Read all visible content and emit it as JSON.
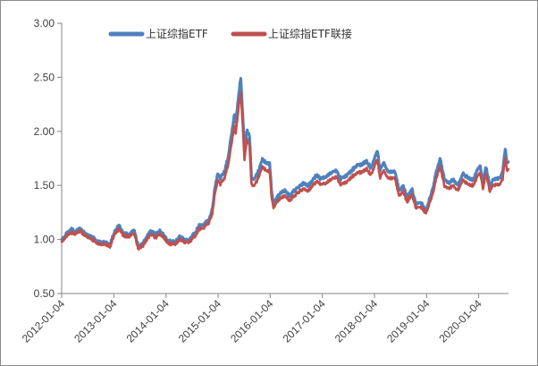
{
  "chart_data": {
    "type": "line",
    "title": "",
    "xlabel": "",
    "ylabel": "",
    "x_ticks": [
      "2012-01-04",
      "2013-01-04",
      "2014-01-04",
      "2015-01-04",
      "2016-01-04",
      "2017-01-04",
      "2018-01-04",
      "2019-01-04",
      "2020-01-04"
    ],
    "x_range": [
      "2012-01-04",
      "2020-07-31"
    ],
    "ylim": [
      0.5,
      3.0
    ],
    "y_ticks": [
      "0.50",
      "1.00",
      "1.50",
      "2.00",
      "2.50",
      "3.00"
    ],
    "grid": false,
    "legend_position": "top-center",
    "series": [
      {
        "name": "上证综指ETF",
        "color": "#4f81bd",
        "points": [
          [
            "2012-01-04",
            1.0
          ],
          [
            "2012-02-15",
            1.06
          ],
          [
            "2012-03-10",
            1.1
          ],
          [
            "2012-04-10",
            1.07
          ],
          [
            "2012-05-10",
            1.1
          ],
          [
            "2012-06-20",
            1.05
          ],
          [
            "2012-08-01",
            1.02
          ],
          [
            "2012-09-20",
            0.98
          ],
          [
            "2012-11-15",
            0.97
          ],
          [
            "2012-12-04",
            0.94
          ],
          [
            "2012-12-31",
            1.04
          ],
          [
            "2013-01-20",
            1.1
          ],
          [
            "2013-02-10",
            1.13
          ],
          [
            "2013-03-10",
            1.06
          ],
          [
            "2013-04-20",
            1.04
          ],
          [
            "2013-05-25",
            1.09
          ],
          [
            "2013-06-25",
            0.93
          ],
          [
            "2013-07-25",
            0.96
          ],
          [
            "2013-09-15",
            1.07
          ],
          [
            "2013-10-25",
            1.05
          ],
          [
            "2013-11-25",
            1.08
          ],
          [
            "2013-12-25",
            1.03
          ],
          [
            "2014-01-20",
            0.98
          ],
          [
            "2014-03-10",
            0.98
          ],
          [
            "2014-04-10",
            1.03
          ],
          [
            "2014-05-20",
            0.99
          ],
          [
            "2014-06-20",
            1.0
          ],
          [
            "2014-07-25",
            1.06
          ],
          [
            "2014-08-25",
            1.13
          ],
          [
            "2014-09-25",
            1.14
          ],
          [
            "2014-10-30",
            1.18
          ],
          [
            "2014-11-25",
            1.28
          ],
          [
            "2014-12-10",
            1.45
          ],
          [
            "2014-12-31",
            1.6
          ],
          [
            "2015-01-20",
            1.57
          ],
          [
            "2015-02-15",
            1.62
          ],
          [
            "2015-03-15",
            1.76
          ],
          [
            "2015-04-10",
            1.99
          ],
          [
            "2015-04-28",
            2.16
          ],
          [
            "2015-05-08",
            2.09
          ],
          [
            "2015-05-28",
            2.33
          ],
          [
            "2015-06-08",
            2.45
          ],
          [
            "2015-06-12",
            2.5
          ],
          [
            "2015-06-26",
            2.14
          ],
          [
            "2015-07-08",
            1.82
          ],
          [
            "2015-07-24",
            2.01
          ],
          [
            "2015-08-12",
            1.97
          ],
          [
            "2015-08-26",
            1.58
          ],
          [
            "2015-09-15",
            1.55
          ],
          [
            "2015-10-15",
            1.64
          ],
          [
            "2015-11-10",
            1.74
          ],
          [
            "2015-12-10",
            1.71
          ],
          [
            "2015-12-31",
            1.7
          ],
          [
            "2016-01-15",
            1.43
          ],
          [
            "2016-01-28",
            1.33
          ],
          [
            "2016-02-20",
            1.38
          ],
          [
            "2016-03-20",
            1.44
          ],
          [
            "2016-04-20",
            1.45
          ],
          [
            "2016-05-20",
            1.4
          ],
          [
            "2016-06-20",
            1.45
          ],
          [
            "2016-07-25",
            1.49
          ],
          [
            "2016-08-25",
            1.52
          ],
          [
            "2016-09-25",
            1.5
          ],
          [
            "2016-10-25",
            1.54
          ],
          [
            "2016-11-25",
            1.6
          ],
          [
            "2016-12-20",
            1.56
          ],
          [
            "2017-01-25",
            1.58
          ],
          [
            "2017-03-10",
            1.62
          ],
          [
            "2017-04-10",
            1.64
          ],
          [
            "2017-05-10",
            1.56
          ],
          [
            "2017-06-20",
            1.59
          ],
          [
            "2017-07-25",
            1.63
          ],
          [
            "2017-08-25",
            1.68
          ],
          [
            "2017-09-25",
            1.69
          ],
          [
            "2017-11-10",
            1.72
          ],
          [
            "2017-12-10",
            1.66
          ],
          [
            "2018-01-25",
            1.82
          ],
          [
            "2018-02-10",
            1.64
          ],
          [
            "2018-03-10",
            1.71
          ],
          [
            "2018-04-10",
            1.63
          ],
          [
            "2018-05-25",
            1.63
          ],
          [
            "2018-06-25",
            1.46
          ],
          [
            "2018-07-25",
            1.49
          ],
          [
            "2018-08-20",
            1.39
          ],
          [
            "2018-09-25",
            1.46
          ],
          [
            "2018-10-20",
            1.33
          ],
          [
            "2018-11-20",
            1.35
          ],
          [
            "2018-12-25",
            1.28
          ],
          [
            "2019-01-04",
            1.28
          ],
          [
            "2019-02-20",
            1.49
          ],
          [
            "2019-03-10",
            1.62
          ],
          [
            "2019-04-08",
            1.75
          ],
          [
            "2019-05-10",
            1.55
          ],
          [
            "2019-06-10",
            1.52
          ],
          [
            "2019-07-10",
            1.56
          ],
          [
            "2019-08-10",
            1.5
          ],
          [
            "2019-09-15",
            1.61
          ],
          [
            "2019-10-25",
            1.57
          ],
          [
            "2019-11-25",
            1.55
          ],
          [
            "2019-12-31",
            1.65
          ],
          [
            "2020-01-15",
            1.67
          ],
          [
            "2020-02-03",
            1.52
          ],
          [
            "2020-02-25",
            1.67
          ],
          [
            "2020-03-20",
            1.5
          ],
          [
            "2020-04-20",
            1.56
          ],
          [
            "2020-05-25",
            1.56
          ],
          [
            "2020-06-20",
            1.62
          ],
          [
            "2020-07-08",
            1.84
          ],
          [
            "2020-07-20",
            1.7
          ],
          [
            "2020-07-31",
            1.73
          ]
        ]
      },
      {
        "name": "上证综指ETF联接",
        "color": "#c0504d",
        "points": [
          [
            "2012-01-04",
            0.98
          ],
          [
            "2012-02-15",
            1.04
          ],
          [
            "2012-03-10",
            1.07
          ],
          [
            "2012-04-10",
            1.05
          ],
          [
            "2012-05-10",
            1.08
          ],
          [
            "2012-06-20",
            1.03
          ],
          [
            "2012-08-01",
            1.0
          ],
          [
            "2012-09-20",
            0.96
          ],
          [
            "2012-11-15",
            0.95
          ],
          [
            "2012-12-04",
            0.92
          ],
          [
            "2012-12-31",
            1.02
          ],
          [
            "2013-01-20",
            1.07
          ],
          [
            "2013-02-10",
            1.1
          ],
          [
            "2013-03-10",
            1.04
          ],
          [
            "2013-04-20",
            1.02
          ],
          [
            "2013-05-25",
            1.06
          ],
          [
            "2013-06-25",
            0.91
          ],
          [
            "2013-07-25",
            0.94
          ],
          [
            "2013-09-15",
            1.04
          ],
          [
            "2013-10-25",
            1.02
          ],
          [
            "2013-11-25",
            1.05
          ],
          [
            "2013-12-25",
            1.01
          ],
          [
            "2014-01-20",
            0.96
          ],
          [
            "2014-03-10",
            0.96
          ],
          [
            "2014-04-10",
            1.0
          ],
          [
            "2014-05-20",
            0.97
          ],
          [
            "2014-06-20",
            0.98
          ],
          [
            "2014-07-25",
            1.03
          ],
          [
            "2014-08-25",
            1.1
          ],
          [
            "2014-09-25",
            1.11
          ],
          [
            "2014-10-30",
            1.15
          ],
          [
            "2014-11-25",
            1.24
          ],
          [
            "2014-12-10",
            1.4
          ],
          [
            "2014-12-31",
            1.54
          ],
          [
            "2015-01-20",
            1.51
          ],
          [
            "2015-02-15",
            1.56
          ],
          [
            "2015-03-15",
            1.69
          ],
          [
            "2015-04-10",
            1.9
          ],
          [
            "2015-04-28",
            2.06
          ],
          [
            "2015-05-08",
            1.99
          ],
          [
            "2015-05-28",
            2.22
          ],
          [
            "2015-06-08",
            2.33
          ],
          [
            "2015-06-12",
            2.37
          ],
          [
            "2015-06-26",
            2.04
          ],
          [
            "2015-07-08",
            1.74
          ],
          [
            "2015-07-24",
            1.92
          ],
          [
            "2015-08-12",
            1.88
          ],
          [
            "2015-08-26",
            1.52
          ],
          [
            "2015-09-15",
            1.49
          ],
          [
            "2015-10-15",
            1.58
          ],
          [
            "2015-11-10",
            1.67
          ],
          [
            "2015-12-10",
            1.64
          ],
          [
            "2015-12-31",
            1.63
          ],
          [
            "2016-01-15",
            1.38
          ],
          [
            "2016-01-28",
            1.29
          ],
          [
            "2016-02-20",
            1.34
          ],
          [
            "2016-03-20",
            1.39
          ],
          [
            "2016-04-20",
            1.4
          ],
          [
            "2016-05-20",
            1.36
          ],
          [
            "2016-06-20",
            1.4
          ],
          [
            "2016-07-25",
            1.44
          ],
          [
            "2016-08-25",
            1.47
          ],
          [
            "2016-09-25",
            1.45
          ],
          [
            "2016-10-25",
            1.49
          ],
          [
            "2016-11-25",
            1.54
          ],
          [
            "2016-12-20",
            1.51
          ],
          [
            "2017-01-25",
            1.52
          ],
          [
            "2017-03-10",
            1.56
          ],
          [
            "2017-04-10",
            1.58
          ],
          [
            "2017-05-10",
            1.51
          ],
          [
            "2017-06-20",
            1.53
          ],
          [
            "2017-07-25",
            1.57
          ],
          [
            "2017-08-25",
            1.61
          ],
          [
            "2017-09-25",
            1.62
          ],
          [
            "2017-11-10",
            1.65
          ],
          [
            "2017-12-10",
            1.6
          ],
          [
            "2018-01-25",
            1.74
          ],
          [
            "2018-02-10",
            1.57
          ],
          [
            "2018-03-10",
            1.64
          ],
          [
            "2018-04-10",
            1.57
          ],
          [
            "2018-05-25",
            1.57
          ],
          [
            "2018-06-25",
            1.41
          ],
          [
            "2018-07-25",
            1.44
          ],
          [
            "2018-08-20",
            1.35
          ],
          [
            "2018-09-25",
            1.41
          ],
          [
            "2018-10-20",
            1.29
          ],
          [
            "2018-11-20",
            1.31
          ],
          [
            "2018-12-25",
            1.25
          ],
          [
            "2019-01-04",
            1.25
          ],
          [
            "2019-02-20",
            1.44
          ],
          [
            "2019-03-10",
            1.56
          ],
          [
            "2019-04-08",
            1.68
          ],
          [
            "2019-05-10",
            1.49
          ],
          [
            "2019-06-10",
            1.47
          ],
          [
            "2019-07-10",
            1.5
          ],
          [
            "2019-08-10",
            1.45
          ],
          [
            "2019-09-15",
            1.55
          ],
          [
            "2019-10-25",
            1.51
          ],
          [
            "2019-11-25",
            1.5
          ],
          [
            "2019-12-31",
            1.59
          ],
          [
            "2020-01-15",
            1.61
          ],
          [
            "2020-02-03",
            1.47
          ],
          [
            "2020-02-25",
            1.61
          ],
          [
            "2020-03-20",
            1.45
          ],
          [
            "2020-04-20",
            1.51
          ],
          [
            "2020-05-25",
            1.5
          ],
          [
            "2020-06-20",
            1.56
          ],
          [
            "2020-07-08",
            1.76
          ],
          [
            "2020-07-20",
            1.63
          ],
          [
            "2020-07-31",
            1.66
          ]
        ]
      }
    ]
  }
}
